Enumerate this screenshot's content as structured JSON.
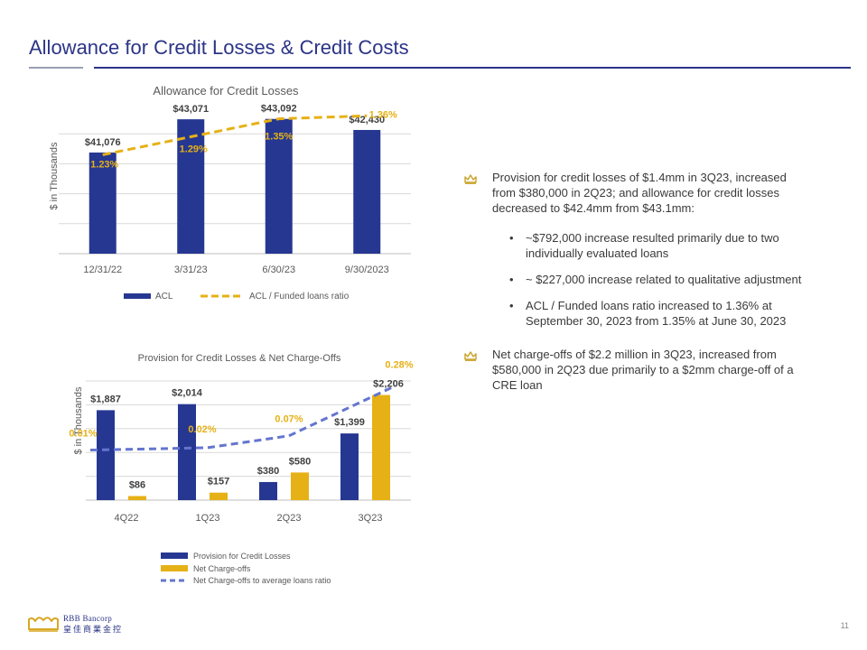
{
  "page": {
    "title": "Allowance for Credit Losses & Credit Costs",
    "page_number": "11"
  },
  "colors": {
    "bar_blue": "#263792",
    "gold": "#e6b116",
    "dashed_blue": "#6475cf",
    "title_blue": "#2b3486"
  },
  "chart_data": [
    {
      "type": "bar",
      "title": "Allowance for Credit Losses",
      "ylabel": "$ in Thousands",
      "categories": [
        "12/31/22",
        "3/31/23",
        "6/30/23",
        "9/30/2023"
      ],
      "series": [
        {
          "name": "ACL",
          "type": "bar",
          "values": [
            41076,
            43071,
            43092,
            42430
          ],
          "labels": [
            "$41,076",
            "$43,071",
            "$43,092",
            "$42,430"
          ]
        },
        {
          "name": "ACL / Funded loans ratio",
          "type": "line",
          "values": [
            1.23,
            1.29,
            1.35,
            1.36
          ],
          "labels": [
            "1.23%",
            "1.29%",
            "1.35%",
            "1.36%"
          ]
        }
      ],
      "ylim": [
        35000,
        44000
      ],
      "y2lim": [
        0.9,
        1.4
      ],
      "grid": true,
      "legend": "bottom"
    },
    {
      "type": "bar",
      "title": "Provision for Credit Losses & Net Charge-Offs",
      "ylabel": "$ in Thousands",
      "categories": [
        "4Q22",
        "1Q23",
        "2Q23",
        "3Q23"
      ],
      "series": [
        {
          "name": "Provision for Credit Losses",
          "type": "bar",
          "values": [
            1887,
            2014,
            380,
            1399
          ],
          "labels": [
            "$1,887",
            "$2,014",
            "$380",
            "$1,399"
          ]
        },
        {
          "name": "Net Charge-offs",
          "type": "bar",
          "values": [
            86,
            157,
            580,
            2206
          ],
          "labels": [
            "$86",
            "$157",
            "$580",
            "$2,206"
          ]
        },
        {
          "name": "Net Charge-offs to average loans ratio",
          "type": "line",
          "values": [
            0.01,
            0.02,
            0.07,
            0.28
          ],
          "labels": [
            "0.01%",
            "0.02%",
            "0.07%",
            "0.28%"
          ]
        }
      ],
      "ylim": [
        0,
        2500
      ],
      "y2lim": [
        -0.2,
        0.3
      ],
      "grid": true,
      "legend": "bottom"
    }
  ],
  "bullets": [
    {
      "text": "Provision for credit losses of $1.4mm in 3Q23, increased from $380,000 in 2Q23; and allowance for credit losses decreased to $42.4mm from $43.1mm:",
      "subs": [
        "~$792,000 increase resulted primarily due to two individually evaluated loans",
        "~ $227,000 increase related to qualitative adjustment",
        "ACL / Funded loans ratio increased to 1.36% at September 30, 2023 from 1.35% at June 30, 2023"
      ]
    },
    {
      "text": "Net charge-offs of $2.2 million in 3Q23, increased from $580,000 in 2Q23 due primarily to a $2mm charge-off of a CRE loan",
      "subs": []
    }
  ],
  "logo": {
    "name": "RBB Bancorp",
    "chinese": "皇佳商業金控"
  }
}
